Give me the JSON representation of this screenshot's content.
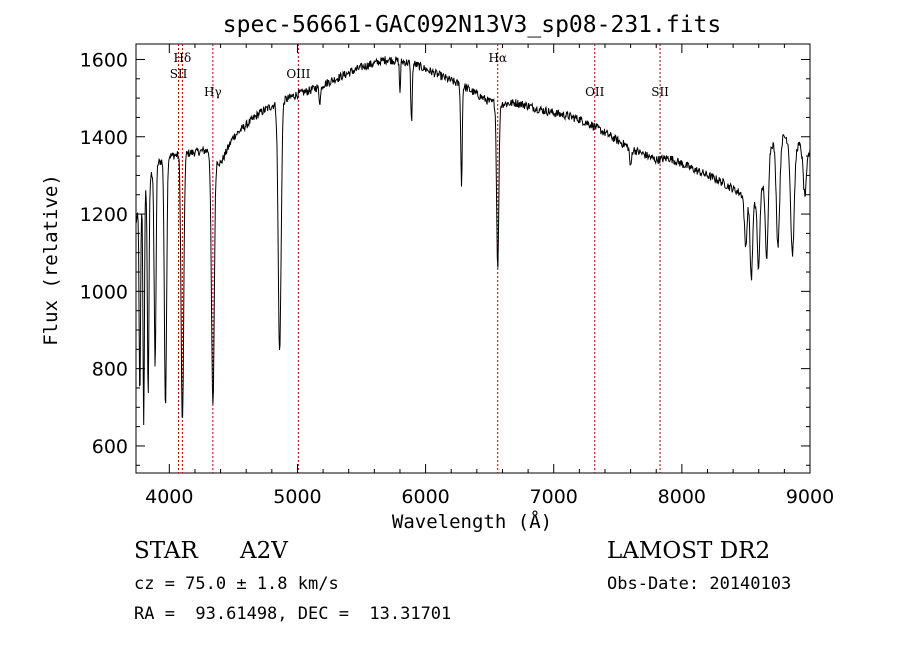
{
  "chart_data": {
    "type": "line",
    "title": "spec-56661-GAC092N13V3_sp08-231.fits",
    "xlabel": "Wavelength (Å)",
    "ylabel": "Flux (relative)",
    "xlim": [
      3740,
      9000
    ],
    "ylim": [
      530,
      1640
    ],
    "xticks": [
      4000,
      5000,
      6000,
      7000,
      8000,
      9000
    ],
    "yticks": [
      600,
      800,
      1000,
      1200,
      1400,
      1600
    ],
    "grid": false,
    "continuum": {
      "x": [
        3740,
        3800,
        3900,
        4000,
        4100,
        4200,
        4300,
        4400,
        4500,
        4600,
        4700,
        4800,
        4900,
        5000,
        5100,
        5200,
        5300,
        5400,
        5500,
        5600,
        5700,
        5800,
        5900,
        6000,
        6100,
        6200,
        6300,
        6400,
        6500,
        6600,
        6700,
        6800,
        6900,
        7000,
        7100,
        7200,
        7300,
        7400,
        7500,
        7600,
        7700,
        7800,
        7900,
        8000,
        8100,
        8200,
        8300,
        8400,
        8500,
        8600,
        8700,
        8800,
        8900,
        9000
      ],
      "y": [
        1180,
        1260,
        1330,
        1350,
        1355,
        1360,
        1365,
        1330,
        1400,
        1430,
        1460,
        1480,
        1495,
        1510,
        1520,
        1535,
        1550,
        1565,
        1580,
        1590,
        1600,
        1595,
        1590,
        1575,
        1560,
        1545,
        1530,
        1510,
        1490,
        1485,
        1488,
        1480,
        1470,
        1462,
        1455,
        1445,
        1430,
        1410,
        1390,
        1370,
        1355,
        1340,
        1345,
        1330,
        1315,
        1300,
        1285,
        1265,
        1245,
        1220,
        1380,
        1400,
        1380,
        1360
      ]
    },
    "absorption_lines": [
      {
        "center": 3770,
        "depth": 500,
        "width": 8
      },
      {
        "center": 3800,
        "depth": 600,
        "width": 8
      },
      {
        "center": 3835,
        "depth": 550,
        "width": 9
      },
      {
        "center": 3889,
        "depth": 520,
        "width": 10
      },
      {
        "center": 3970,
        "depth": 650,
        "width": 12
      },
      {
        "center": 4102,
        "depth": 700,
        "width": 14
      },
      {
        "center": 4340,
        "depth": 650,
        "width": 15
      },
      {
        "center": 4861,
        "depth": 650,
        "width": 16
      },
      {
        "center": 5175,
        "depth": 40,
        "width": 10
      },
      {
        "center": 5890,
        "depth": 150,
        "width": 8
      },
      {
        "center": 5800,
        "depth": 80,
        "width": 6
      },
      {
        "center": 6280,
        "depth": 260,
        "width": 8
      },
      {
        "center": 6563,
        "depth": 420,
        "width": 12
      },
      {
        "center": 7600,
        "depth": 50,
        "width": 10
      },
      {
        "center": 8498,
        "depth": 130,
        "width": 14
      },
      {
        "center": 8542,
        "depth": 200,
        "width": 14
      },
      {
        "center": 8598,
        "depth": 170,
        "width": 12
      },
      {
        "center": 8662,
        "depth": 240,
        "width": 15
      },
      {
        "center": 8750,
        "depth": 270,
        "width": 18
      },
      {
        "center": 8863,
        "depth": 290,
        "width": 20
      },
      {
        "center": 8960,
        "depth": 120,
        "width": 18
      }
    ],
    "line_markers": [
      {
        "label": "Hδ",
        "x": 4102,
        "row": 0
      },
      {
        "label": "SII",
        "x": 4072,
        "row": 1
      },
      {
        "label": "Hγ",
        "x": 4340,
        "row": 2
      },
      {
        "label": "OIII",
        "x": 5007,
        "row": 1
      },
      {
        "label": "Hα",
        "x": 6563,
        "row": 0
      },
      {
        "label": "OII",
        "x": 7320,
        "row": 2
      },
      {
        "label": "SII",
        "x": 7830,
        "row": 2
      }
    ]
  },
  "info": {
    "type_label": "STAR",
    "subclass": "A2V",
    "survey": "LAMOST DR2",
    "cz": "cz = 75.0 ± 1.8 km/s",
    "obs_date": "Obs-Date: 20140103",
    "coords": "RA =  93.61498, DEC =  13.31701"
  }
}
